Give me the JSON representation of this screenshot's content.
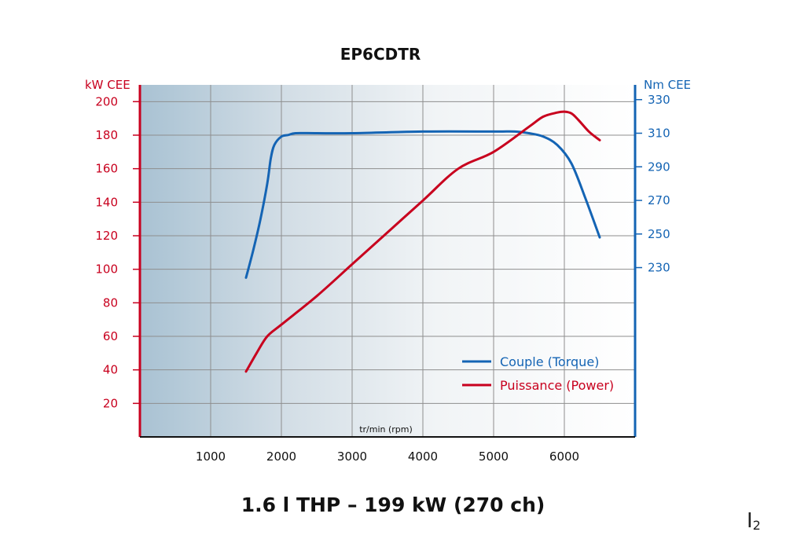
{
  "chart_data": {
    "type": "line",
    "title": "EP6CDTR",
    "subtitle": "1.6 l THP – 199 kW (270 ch)",
    "xlabel": "tr/min (rpm)",
    "ylabel_left": "kW CEE",
    "ylabel_right": "Nm CEE",
    "xlim": [
      0,
      7000
    ],
    "ylim_left": [
      0,
      210
    ],
    "x_ticks": [
      1000,
      2000,
      3000,
      4000,
      5000,
      6000
    ],
    "y_ticks_left": [
      20,
      40,
      60,
      80,
      100,
      120,
      140,
      160,
      180,
      200
    ],
    "y_ticks_right": [
      230,
      250,
      270,
      290,
      310,
      330
    ],
    "right_axis_map": {
      "nm_at_230": 230,
      "kw_at_230": 101,
      "kw_per_nm": 1.002
    },
    "grid": true,
    "legend_position": "bottom-right",
    "colors": {
      "left_axis": "#c8001e",
      "right_axis": "#1464b4"
    },
    "series": [
      {
        "name": "Couple (Torque)",
        "axis": "right",
        "color": "#1464b4",
        "x": [
          1500,
          1600,
          1700,
          1800,
          1850,
          1900,
          2000,
          2100,
          2200,
          2500,
          3000,
          4000,
          5000,
          5300,
          5500,
          5700,
          5900,
          6100,
          6300,
          6500
        ],
        "y": [
          224,
          240,
          258,
          280,
          295,
          303,
          308,
          309,
          310,
          310,
          310,
          311,
          311,
          311,
          310,
          308,
          303,
          292,
          271,
          248
        ]
      },
      {
        "name": "Puissance (Power)",
        "axis": "left",
        "color": "#c8001e",
        "x": [
          1500,
          1650,
          1800,
          2000,
          2500,
          3000,
          3500,
          4000,
          4500,
          5000,
          5500,
          5700,
          5900,
          6000,
          6100,
          6200,
          6350,
          6500
        ],
        "y": [
          39,
          50,
          60,
          67,
          84,
          103,
          122,
          141,
          160,
          170,
          185,
          191,
          193.5,
          194,
          193,
          189,
          182,
          177
        ]
      }
    ]
  },
  "page": {
    "mark_letter": "I",
    "mark_sub": "2"
  }
}
